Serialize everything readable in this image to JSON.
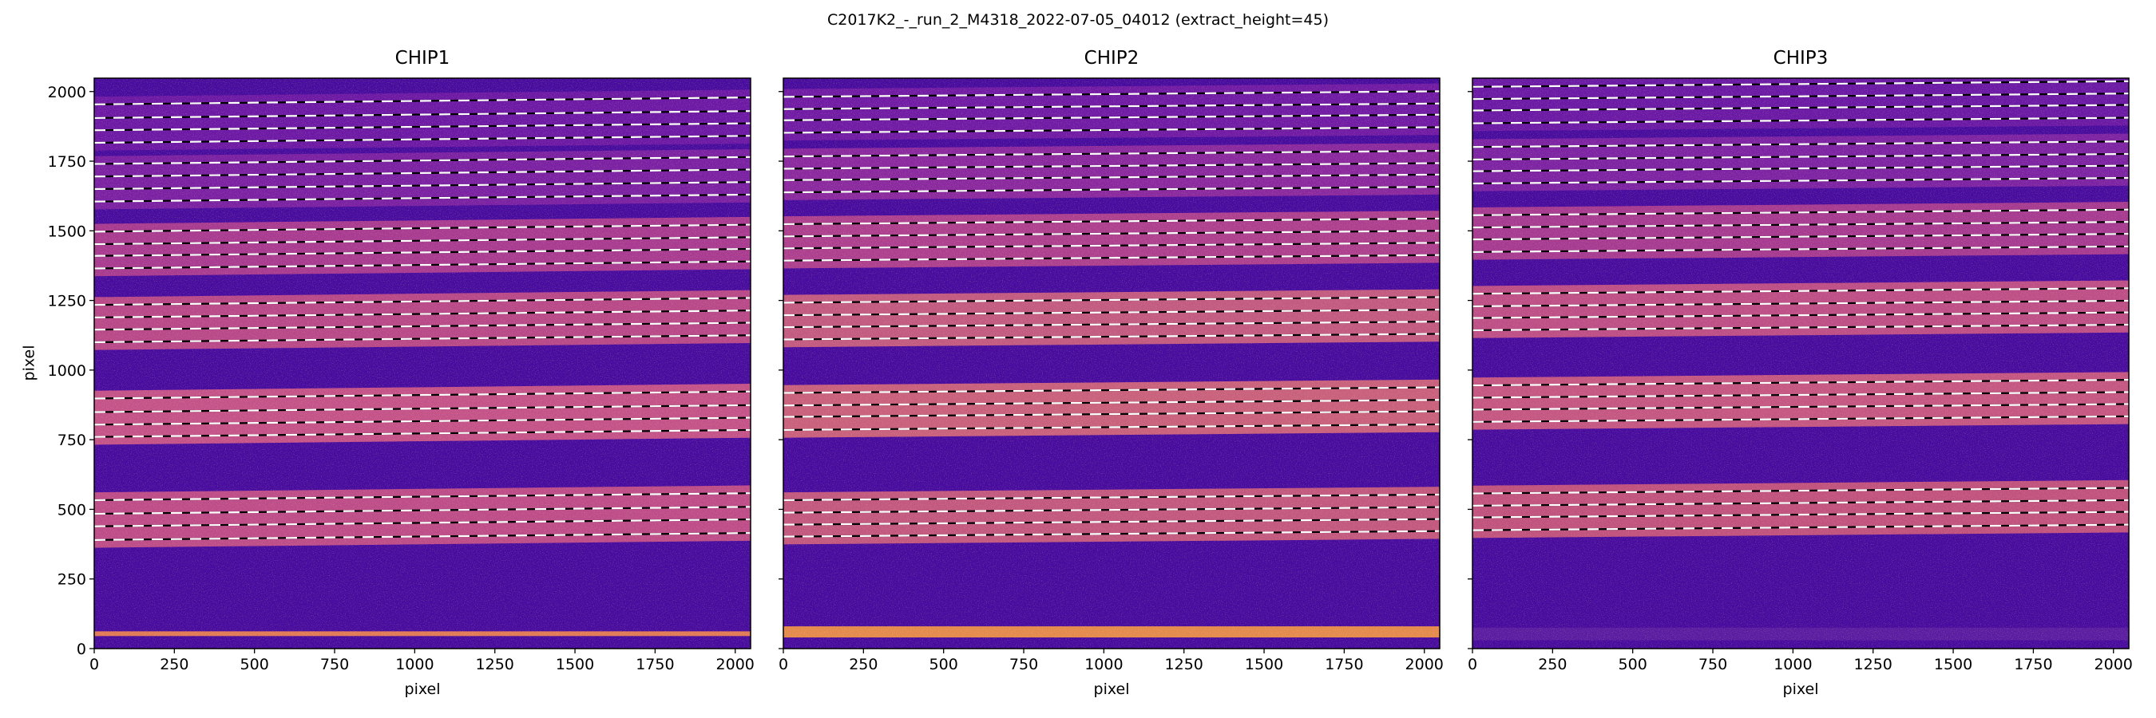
{
  "figure": {
    "title": "C2017K2_-_run_2_M4318_2022-07-05_04012  (extract_height=45)"
  },
  "chart_data": [
    {
      "type": "heatmap",
      "title": "CHIP1",
      "xlabel": "pixel",
      "ylabel": "pixel",
      "xlim": [
        0,
        2048
      ],
      "ylim": [
        0,
        2048
      ],
      "xticks": [
        0,
        250,
        500,
        750,
        1000,
        1250,
        1500,
        1750,
        2000
      ],
      "yticks": [
        0,
        250,
        500,
        750,
        1000,
        1250,
        1500,
        1750,
        2000
      ],
      "colormap": "plasma",
      "trace_rise_across_chip": 25,
      "traces_at_x0": [
        [
          1954,
          1905,
          1861,
          1816
        ],
        [
          1740,
          1695,
          1650,
          1605
        ],
        [
          1497,
          1452,
          1410,
          1365
        ],
        [
          1234,
          1189,
          1145,
          1100
        ],
        [
          898,
          849,
          804,
          760
        ],
        [
          533,
          484,
          439,
          390
        ]
      ]
    },
    {
      "type": "heatmap",
      "title": "CHIP2",
      "xlabel": "pixel",
      "xlim": [
        0,
        2048
      ],
      "ylim": [
        0,
        2048
      ],
      "xticks": [
        0,
        250,
        500,
        750,
        1000,
        1250,
        1500,
        1750,
        2000
      ],
      "yticks": [
        0,
        250,
        500,
        750,
        1000,
        1250,
        1500,
        1750,
        2000
      ],
      "colormap": "plasma",
      "trace_rise_across_chip": 20,
      "traces_at_x0": [
        [
          1981,
          1937,
          1897,
          1852
        ],
        [
          1767,
          1723,
          1682,
          1638
        ],
        [
          1524,
          1480,
          1437,
          1393
        ],
        [
          1242,
          1197,
          1154,
          1110
        ],
        [
          918,
          873,
          832,
          785
        ],
        [
          533,
          488,
          445,
          402
        ]
      ]
    },
    {
      "type": "heatmap",
      "title": "CHIP3",
      "xlabel": "pixel",
      "xlim": [
        0,
        2048
      ],
      "ylim": [
        0,
        2048
      ],
      "xticks": [
        0,
        250,
        500,
        750,
        1000,
        1250,
        1500,
        1750,
        2000
      ],
      "yticks": [
        0,
        250,
        500,
        750,
        1000,
        1250,
        1500,
        1750,
        2000
      ],
      "colormap": "plasma",
      "trace_rise_across_chip": 20,
      "traces_at_x0": [
        [
          2017,
          1973,
          1932,
          1886
        ],
        [
          1801,
          1756,
          1714,
          1670
        ],
        [
          1556,
          1512,
          1469,
          1424
        ],
        [
          1274,
          1229,
          1187,
          1143
        ],
        [
          945,
          901,
          858,
          814
        ],
        [
          557,
          513,
          471,
          425
        ]
      ]
    }
  ]
}
